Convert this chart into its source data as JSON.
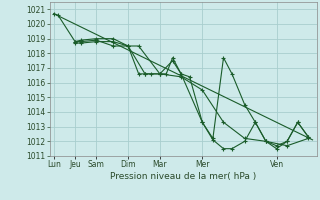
{
  "background_color": "#ceeaea",
  "grid_color": "#a8cece",
  "line_color": "#1a5c2a",
  "marker_color": "#1a5c2a",
  "ylim": [
    1011,
    1021.5
  ],
  "yticks": [
    1011,
    1012,
    1013,
    1014,
    1015,
    1016,
    1017,
    1018,
    1019,
    1020,
    1021
  ],
  "xlabel": "Pression niveau de la mer( hPa )",
  "day_labels": [
    "Lun",
    "Jeu",
    "Sam",
    "Dim",
    "Mar",
    "Mer",
    "Ven"
  ],
  "day_positions": [
    0,
    0.5,
    1.0,
    1.75,
    2.5,
    3.5,
    5.25
  ],
  "xlim": [
    -0.1,
    6.2
  ],
  "trend_x": [
    0,
    6.1
  ],
  "trend_y": [
    1020.7,
    1012.1
  ],
  "series1_x": [
    0.0,
    0.1,
    0.5,
    0.65,
    1.0,
    1.4,
    1.75,
    2.0,
    2.5,
    3.0,
    3.5,
    4.0,
    4.5,
    5.0,
    5.5,
    6.0
  ],
  "series1_y": [
    1020.7,
    1020.6,
    1018.8,
    1018.8,
    1018.9,
    1018.5,
    1018.5,
    1018.5,
    1016.6,
    1016.4,
    1015.5,
    1013.3,
    1012.2,
    1012.0,
    1011.7,
    1012.2
  ],
  "series2_x": [
    0.5,
    0.65,
    1.0,
    1.4,
    1.75,
    2.0,
    2.15,
    2.3,
    2.5,
    2.65,
    2.8,
    3.0,
    3.2,
    3.5,
    3.75,
    4.0,
    4.2,
    4.5,
    4.75,
    5.0,
    5.25,
    5.5,
    5.75,
    6.0
  ],
  "series2_y": [
    1018.8,
    1018.9,
    1019.0,
    1019.0,
    1018.5,
    1016.6,
    1016.6,
    1016.6,
    1016.6,
    1016.6,
    1017.7,
    1016.6,
    1016.4,
    1013.3,
    1012.2,
    1017.7,
    1016.6,
    1014.5,
    1013.3,
    1012.0,
    1011.5,
    1012.0,
    1013.3,
    1012.3
  ],
  "series3_x": [
    0.5,
    0.65,
    1.0,
    1.4,
    1.75,
    2.15,
    2.5,
    2.8,
    3.0,
    3.5,
    3.75,
    4.0,
    4.2,
    4.5,
    4.75,
    5.0,
    5.25,
    5.5,
    5.75,
    6.0
  ],
  "series3_y": [
    1018.7,
    1018.7,
    1018.8,
    1018.8,
    1018.5,
    1016.6,
    1016.6,
    1017.5,
    1016.6,
    1013.3,
    1012.1,
    1011.5,
    1011.5,
    1012.0,
    1013.3,
    1012.0,
    1011.7,
    1012.0,
    1013.3,
    1012.3
  ]
}
